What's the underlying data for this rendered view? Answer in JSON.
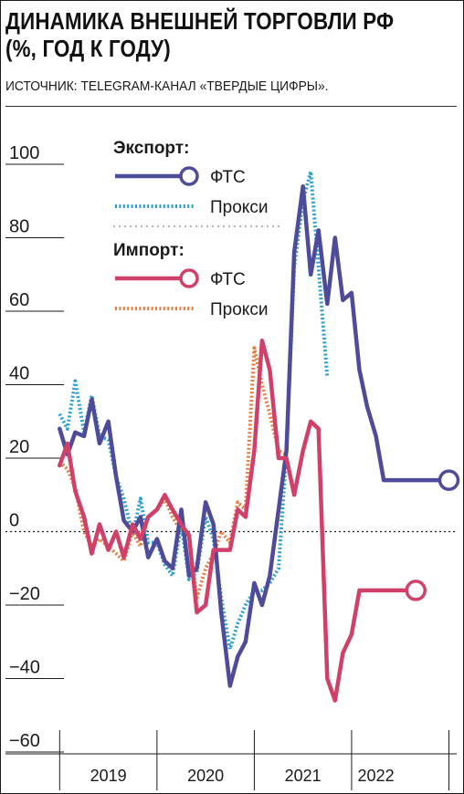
{
  "header": {
    "title_line1": "ДИНАМИКА ВНЕШНЕЙ ТОРГОВЛИ РФ",
    "title_line2": "(%, ГОД К ГОДУ)",
    "source": "ИСТОЧНИК: TELEGRAM-КАНАЛ «ТВЕРДЫЕ ЦИФРЫ»."
  },
  "colors": {
    "export_fts": "#4f4b9b",
    "export_proxy": "#2a9fce",
    "import_fts": "#d0416a",
    "import_proxy": "#e97b3c",
    "axis": "#1a1a1a"
  },
  "chart_data": {
    "type": "line",
    "xlabel": "",
    "ylabel": "",
    "ylim": [
      -60,
      100
    ],
    "yticks": [
      100,
      80,
      60,
      40,
      20,
      0,
      -20,
      -40,
      -60
    ],
    "ytick_labels": [
      "100",
      "80",
      "60",
      "40",
      "20",
      "0",
      "−20",
      "−40",
      "−60"
    ],
    "xlim": [
      2018.45,
      2022.58
    ],
    "x_periods": [
      2018.5,
      2019.5,
      2020.5,
      2021.5,
      2022.5
    ],
    "xtick_labels": [
      "2019",
      "2020",
      "2021",
      "2022"
    ],
    "xtick_positions": [
      2019.0,
      2020.0,
      2021.0,
      2021.75
    ],
    "zero_line": "dotted",
    "legend": {
      "export_header": "Экспорт:",
      "import_header": "Импорт:",
      "fts_label": "ФТС",
      "proxy_label": "Прокси",
      "placement": "top-center"
    },
    "series": [
      {
        "name": "Экспорт: ФТС",
        "group": "export",
        "style": "solid",
        "color": "#4f4b9b",
        "end_marker": true,
        "x": [
          2018.5,
          2018.58,
          2018.66,
          2018.75,
          2018.83,
          2018.91,
          2019.0,
          2019.08,
          2019.16,
          2019.25,
          2019.33,
          2019.41,
          2019.5,
          2019.58,
          2019.66,
          2019.75,
          2019.83,
          2019.91,
          2020.0,
          2020.08,
          2020.16,
          2020.25,
          2020.33,
          2020.41,
          2020.5,
          2020.58,
          2020.66,
          2020.75,
          2020.83,
          2020.91,
          2021.0,
          2021.08,
          2021.16,
          2021.25,
          2021.33,
          2021.41,
          2021.5,
          2021.58,
          2021.66,
          2021.75,
          2021.83,
          2021.91,
          2022.0,
          2022.08,
          2022.16,
          2022.25,
          2022.33,
          2022.41,
          2022.5
        ],
        "y": [
          28,
          21,
          27,
          26,
          36,
          24,
          30,
          15,
          3,
          0,
          4,
          -7,
          -2,
          -8,
          -10,
          6,
          -12,
          -10,
          8,
          2,
          -22,
          -42,
          -34,
          -30,
          -14,
          -20,
          -12,
          6,
          22,
          76,
          94,
          70,
          82,
          62,
          80,
          63,
          65,
          44,
          34,
          26,
          14,
          14,
          14,
          14,
          14,
          14,
          14,
          14,
          14
        ]
      },
      {
        "name": "Экспорт: Прокси",
        "group": "export",
        "style": "dotted",
        "color": "#2a9fce",
        "end_marker": false,
        "x": [
          2018.5,
          2018.58,
          2018.66,
          2018.75,
          2018.83,
          2018.91,
          2019.0,
          2019.08,
          2019.16,
          2019.25,
          2019.33,
          2019.41,
          2019.5,
          2019.58,
          2019.66,
          2019.75,
          2019.83,
          2019.91,
          2020.0,
          2020.08,
          2020.16,
          2020.25,
          2020.33,
          2020.41,
          2020.5,
          2020.58,
          2020.66,
          2020.75,
          2020.83,
          2020.91,
          2021.0,
          2021.08,
          2021.16,
          2021.25
        ],
        "y": [
          32,
          28,
          41,
          27,
          37,
          26,
          25,
          15,
          9,
          -1,
          9,
          -3,
          -3,
          -9,
          -12,
          2,
          -13,
          -11,
          4,
          -2,
          -18,
          -32,
          -25,
          -20,
          -16,
          -16,
          -14,
          -10,
          22,
          72,
          90,
          98,
          72,
          42
        ]
      },
      {
        "name": "Импорт: ФТС",
        "group": "import",
        "style": "solid",
        "color": "#d0416a",
        "end_marker": true,
        "x": [
          2018.5,
          2018.58,
          2018.66,
          2018.75,
          2018.83,
          2018.91,
          2019.0,
          2019.08,
          2019.16,
          2019.25,
          2019.33,
          2019.41,
          2019.5,
          2019.58,
          2019.66,
          2019.75,
          2019.83,
          2019.91,
          2020.0,
          2020.08,
          2020.16,
          2020.25,
          2020.33,
          2020.41,
          2020.5,
          2020.58,
          2020.66,
          2020.75,
          2020.83,
          2020.91,
          2021.0,
          2021.08,
          2021.16,
          2021.25,
          2021.33,
          2021.41,
          2021.5,
          2021.58,
          2021.66,
          2021.75,
          2021.83,
          2021.91,
          2022.0,
          2022.08,
          2022.16
        ],
        "y": [
          18,
          24,
          11,
          4,
          -6,
          2,
          -5,
          0,
          -7,
          2,
          -2,
          4,
          6,
          10,
          6,
          2,
          -1,
          -22,
          -20,
          -5,
          -5,
          -5,
          6,
          4,
          22,
          52,
          44,
          20,
          20,
          10,
          22,
          30,
          28,
          -40,
          -46,
          -33,
          -28,
          -16,
          -16,
          -16,
          -16,
          -16,
          -16,
          -16,
          -16
        ]
      },
      {
        "name": "Импорт: Прокси",
        "group": "import",
        "style": "dotted",
        "color": "#e97b3c",
        "end_marker": false,
        "x": [
          2018.5,
          2018.58,
          2018.66,
          2018.75,
          2018.83,
          2018.91,
          2019.0,
          2019.08,
          2019.16,
          2019.25,
          2019.33,
          2019.41,
          2019.5,
          2019.58,
          2019.66,
          2019.75,
          2019.83,
          2019.91,
          2020.0,
          2020.08,
          2020.16,
          2020.25,
          2020.33,
          2020.41,
          2020.5,
          2020.58,
          2020.66,
          2020.75,
          2020.83
        ],
        "y": [
          19,
          17,
          12,
          0,
          -4,
          -2,
          -4,
          -6,
          -8,
          0,
          -4,
          4,
          6,
          9,
          4,
          0,
          -2,
          -18,
          -10,
          -6,
          0,
          -3,
          8,
          6,
          50,
          40,
          32,
          22,
          21
        ]
      }
    ]
  }
}
